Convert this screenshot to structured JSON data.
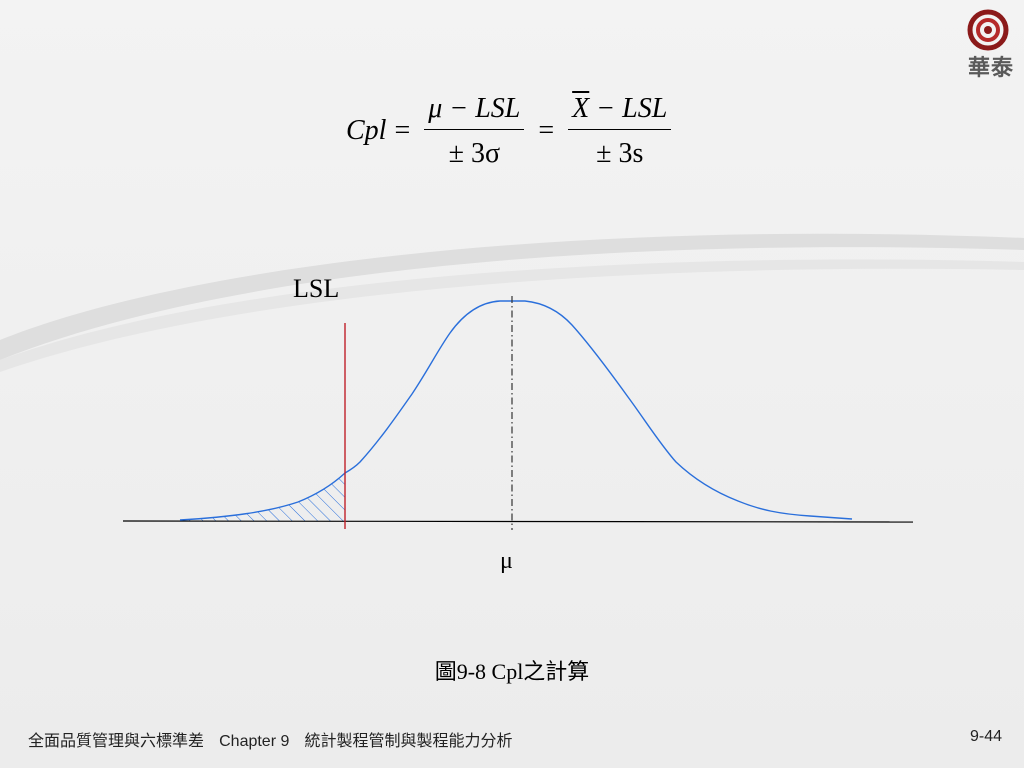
{
  "brand": {
    "logo_text": "華泰"
  },
  "formula": {
    "lhs": "Cpl",
    "num1": "μ − LSL",
    "den1": "± 3σ",
    "num2_x": "X",
    "num2_rest": " − LSL",
    "den2": "± 3s"
  },
  "diagram": {
    "lsl_label": "LSL",
    "mu_label": "μ",
    "colors": {
      "curve": "#2a6fdb",
      "lsl_line": "#c0202a",
      "axis": "#000000",
      "mean_line": "#333333"
    }
  },
  "caption": "圖9-8  Cpl之計算",
  "footer": {
    "book": "全面品質管理與六標準差",
    "chapter": "Chapter 9",
    "chapter_title": "統計製程管制與製程能力分析",
    "page": "9-44"
  }
}
